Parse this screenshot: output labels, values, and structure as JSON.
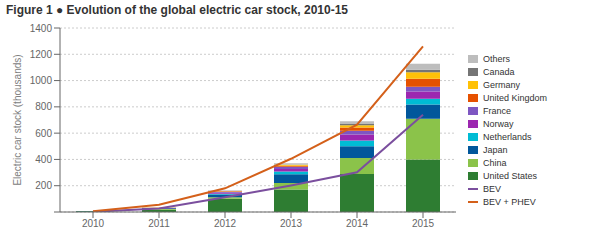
{
  "chart_data": {
    "type": "bar",
    "title": "Figure 1 ● Evolution of the global electric car stock, 2010-15",
    "ylabel": "Electric car stock (thousands)",
    "categories": [
      "2010",
      "2011",
      "2012",
      "2013",
      "2014",
      "2015"
    ],
    "stacked": true,
    "grid": true,
    "legend": "right",
    "ylim": [
      0,
      1400
    ],
    "yticks": [
      {
        "value": 0,
        "label": ""
      },
      200,
      400,
      600,
      800,
      1000,
      1200,
      1400
    ],
    "series": [
      {
        "name": "United States",
        "type": "bar",
        "color": "#2e7d32",
        "values": [
          5,
          18,
          100,
          172,
          290,
          400
        ]
      },
      {
        "name": "China",
        "type": "bar",
        "color": "#8bc34a",
        "values": [
          1,
          5,
          13,
          48,
          120,
          310
        ]
      },
      {
        "name": "Japan",
        "type": "bar",
        "color": "#01579b",
        "values": [
          1,
          5,
          20,
          68,
          90,
          108
        ]
      },
      {
        "name": "Netherlands",
        "type": "bar",
        "color": "#00bcd4",
        "values": [
          0,
          1,
          5,
          20,
          44,
          43
        ]
      },
      {
        "name": "Norway",
        "type": "bar",
        "color": "#9c27b0",
        "values": [
          0,
          1,
          8,
          19,
          45,
          56
        ]
      },
      {
        "name": "France",
        "type": "bar",
        "color": "#7e57c2",
        "values": [
          0,
          2,
          8,
          18,
          29,
          36
        ]
      },
      {
        "name": "United Kingdom",
        "type": "bar",
        "color": "#e65100",
        "values": [
          0,
          1,
          3,
          7,
          25,
          60
        ]
      },
      {
        "name": "Germany",
        "type": "bar",
        "color": "#ffc107",
        "values": [
          0,
          1,
          3,
          7,
          18,
          50
        ]
      },
      {
        "name": "Canada",
        "type": "bar",
        "color": "#757575",
        "values": [
          0,
          0,
          1,
          3,
          9,
          20
        ]
      },
      {
        "name": "Others",
        "type": "bar",
        "color": "#bdbdbd",
        "values": [
          0,
          1,
          3,
          8,
          20,
          45
        ]
      },
      {
        "name": "BEV",
        "type": "line",
        "color": "#7b4f9e",
        "values": [
          2,
          26,
          113,
          202,
          302,
          740
        ]
      },
      {
        "name": "BEV + PHEV",
        "type": "line",
        "color": "#d4601a",
        "values": [
          6,
          55,
          180,
          405,
          665,
          1260
        ]
      }
    ]
  }
}
